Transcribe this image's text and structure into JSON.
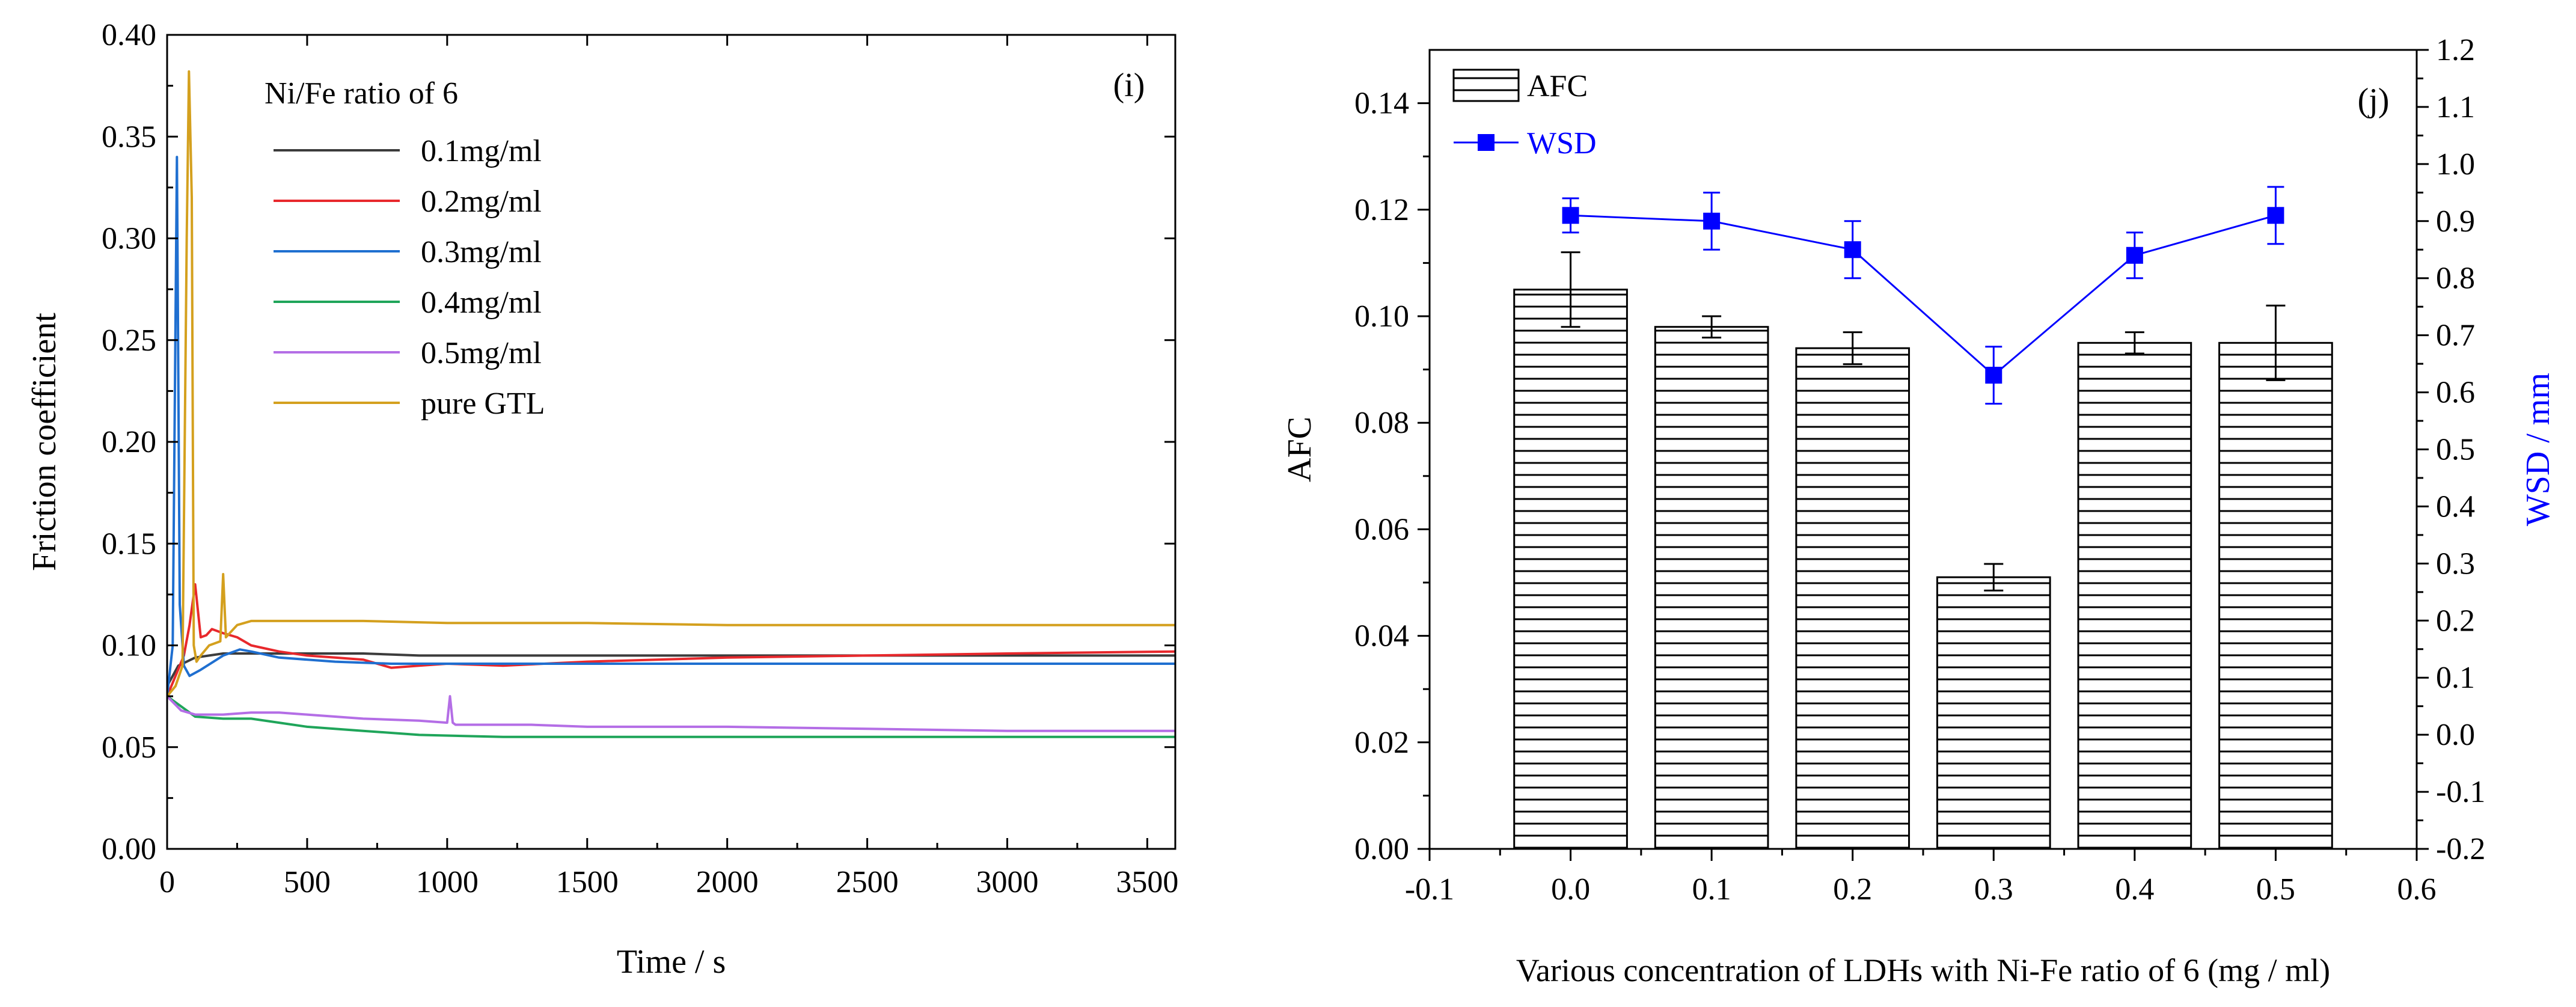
{
  "colors": {
    "axis": "#000000",
    "wsd_blue": "#0000ff",
    "bar_fill": "#ffffff",
    "hatch": "#000000",
    "series": [
      "#3c3c3c",
      "#e8282c",
      "#1f6fd0",
      "#1fa55a",
      "#b46ee6",
      "#d4a01e"
    ]
  },
  "chart_data": [
    {
      "panel": "(i)",
      "type": "line",
      "title": "",
      "xlabel": "Time / s",
      "ylabel": "Friction coefficient",
      "xlim": [
        0,
        3600
      ],
      "ylim": [
        0,
        0.4
      ],
      "xticks": [
        "0",
        "500",
        "1000",
        "1500",
        "2000",
        "2500",
        "3000",
        "3500"
      ],
      "xtick_values": [
        0,
        500,
        1000,
        1500,
        2000,
        2500,
        3000,
        3500
      ],
      "yticks": [
        "0.00",
        "0.05",
        "0.10",
        "0.15",
        "0.20",
        "0.25",
        "0.30",
        "0.35",
        "0.40"
      ],
      "ytick_values": [
        0,
        0.05,
        0.1,
        0.15,
        0.2,
        0.25,
        0.3,
        0.35,
        0.4
      ],
      "legend_title": "Ni/Fe ratio of 6",
      "legend_position": "top-left",
      "series": [
        {
          "name": "0.1mg/ml",
          "x": [
            0,
            40,
            70,
            100,
            150,
            200,
            250,
            300,
            400,
            500,
            700,
            900,
            1200,
            1500,
            2000,
            2500,
            3000,
            3600
          ],
          "y": [
            0.08,
            0.09,
            0.092,
            0.094,
            0.095,
            0.096,
            0.096,
            0.096,
            0.096,
            0.096,
            0.096,
            0.095,
            0.095,
            0.095,
            0.095,
            0.095,
            0.095,
            0.095
          ]
        },
        {
          "name": "0.2mg/ml",
          "x": [
            0,
            30,
            60,
            80,
            100,
            120,
            140,
            160,
            200,
            250,
            300,
            400,
            500,
            600,
            700,
            800,
            900,
            1000,
            1200,
            1500,
            2000,
            2500,
            3000,
            3600
          ],
          "y": [
            0.075,
            0.085,
            0.095,
            0.11,
            0.13,
            0.104,
            0.105,
            0.108,
            0.106,
            0.104,
            0.1,
            0.097,
            0.095,
            0.094,
            0.093,
            0.089,
            0.09,
            0.091,
            0.09,
            0.092,
            0.094,
            0.095,
            0.096,
            0.097
          ]
        },
        {
          "name": "0.3mg/ml",
          "x": [
            0,
            20,
            35,
            45,
            60,
            80,
            120,
            200,
            260,
            300,
            400,
            600,
            800,
            1000,
            1500,
            2000,
            2500,
            3000,
            3600
          ],
          "y": [
            0.075,
            0.1,
            0.34,
            0.12,
            0.09,
            0.085,
            0.088,
            0.095,
            0.098,
            0.097,
            0.094,
            0.092,
            0.091,
            0.091,
            0.091,
            0.091,
            0.091,
            0.091,
            0.091
          ]
        },
        {
          "name": "0.4mg/ml",
          "x": [
            0,
            50,
            100,
            200,
            300,
            400,
            500,
            700,
            900,
            1200,
            1500,
            2000,
            2500,
            3000,
            3600
          ],
          "y": [
            0.075,
            0.07,
            0.065,
            0.064,
            0.064,
            0.062,
            0.06,
            0.058,
            0.056,
            0.055,
            0.055,
            0.055,
            0.055,
            0.055,
            0.055
          ]
        },
        {
          "name": "0.5mg/ml",
          "x": [
            0,
            50,
            100,
            200,
            300,
            400,
            500,
            700,
            900,
            1000,
            1010,
            1020,
            1030,
            1100,
            1300,
            1500,
            2000,
            2500,
            3000,
            3600
          ],
          "y": [
            0.075,
            0.068,
            0.066,
            0.066,
            0.067,
            0.067,
            0.066,
            0.064,
            0.063,
            0.062,
            0.075,
            0.062,
            0.061,
            0.061,
            0.061,
            0.06,
            0.06,
            0.059,
            0.058,
            0.058
          ]
        },
        {
          "name": "pure GTL",
          "x": [
            0,
            30,
            55,
            70,
            78,
            88,
            95,
            105,
            120,
            150,
            190,
            200,
            210,
            250,
            300,
            400,
            500,
            700,
            1000,
            1500,
            2000,
            2500,
            3000,
            3600
          ],
          "y": [
            0.075,
            0.08,
            0.09,
            0.3,
            0.382,
            0.32,
            0.1,
            0.092,
            0.095,
            0.1,
            0.102,
            0.135,
            0.104,
            0.11,
            0.112,
            0.112,
            0.112,
            0.112,
            0.111,
            0.111,
            0.11,
            0.11,
            0.11,
            0.11
          ]
        }
      ]
    },
    {
      "panel": "(j)",
      "type": "bar",
      "title": "",
      "xlabel": "Various concentration of LDHs with Ni-Fe ratio of 6  (mg / ml)",
      "ylabel": "AFC",
      "y2label": "WSD / mm",
      "xlim": [
        -0.1,
        0.6
      ],
      "ylim": [
        0,
        0.15
      ],
      "y2lim": [
        -0.2,
        1.2
      ],
      "xticks": [
        "-0.1",
        "0.0",
        "0.1",
        "0.2",
        "0.3",
        "0.4",
        "0.5",
        "0.6"
      ],
      "xtick_values": [
        -0.1,
        0,
        0.1,
        0.2,
        0.3,
        0.4,
        0.5,
        0.6
      ],
      "yticks": [
        "0.00",
        "0.02",
        "0.04",
        "0.06",
        "0.08",
        "0.10",
        "0.12",
        "0.14"
      ],
      "ytick_values": [
        0,
        0.02,
        0.04,
        0.06,
        0.08,
        0.1,
        0.12,
        0.14
      ],
      "y2ticks": [
        "-0.2",
        "-0.1",
        "0.0",
        "0.1",
        "0.2",
        "0.3",
        "0.4",
        "0.5",
        "0.6",
        "0.7",
        "0.8",
        "0.9",
        "1.0",
        "1.1",
        "1.2"
      ],
      "y2tick_values": [
        -0.2,
        -0.1,
        0,
        0.1,
        0.2,
        0.3,
        0.4,
        0.5,
        0.6,
        0.7,
        0.8,
        0.9,
        1.0,
        1.1,
        1.2
      ],
      "legend_position": "top-left",
      "categories": [
        0.0,
        0.1,
        0.2,
        0.3,
        0.4,
        0.5
      ],
      "series": [
        {
          "name": "AFC",
          "axis": "left",
          "style": "hatched-bar",
          "values": [
            0.105,
            0.098,
            0.094,
            0.051,
            0.095,
            0.095
          ],
          "errors": [
            0.007,
            0.002,
            0.003,
            0.0025,
            0.002,
            0.007
          ]
        },
        {
          "name": "WSD",
          "axis": "right",
          "style": "line-square",
          "values": [
            0.91,
            0.9,
            0.85,
            0.63,
            0.84,
            0.91
          ],
          "errors": [
            0.03,
            0.05,
            0.05,
            0.05,
            0.04,
            0.05
          ]
        }
      ]
    }
  ]
}
